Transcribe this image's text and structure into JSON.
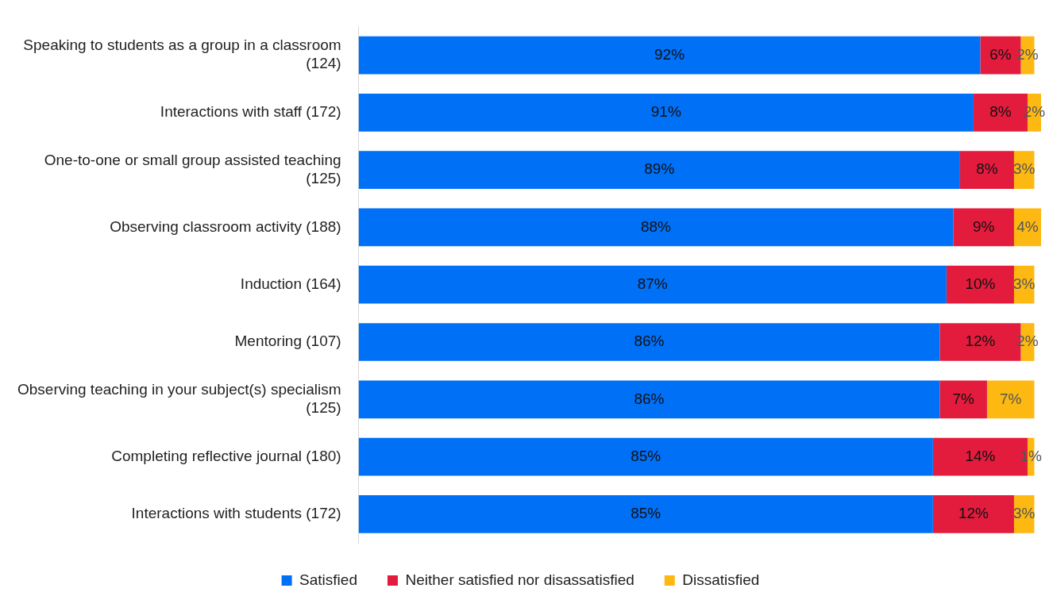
{
  "chart_data": {
    "type": "bar",
    "orientation": "horizontal",
    "stacked": true,
    "legend": "bottom",
    "grid": false,
    "tick_labels": "y",
    "xlim": [
      0,
      101
    ],
    "categories": [
      "Speaking to students as a group in a classroom\n(124)",
      "Interactions with staff (172)",
      "One-to-one or small group assisted teaching\n(125)",
      "Observing classroom activity (188)",
      "Induction (164)",
      "Mentoring (107)",
      "Observing teaching in your subject(s) specialism\n(125)",
      "Completing reflective journal (180)",
      "Interactions with students (172)"
    ],
    "series": [
      {
        "name": "Satisfied",
        "color": "#0070f6",
        "values": [
          92,
          91,
          89,
          88,
          87,
          86,
          86,
          85,
          85
        ],
        "value_labels": [
          "92%",
          "91%",
          "89%",
          "88%",
          "87%",
          "86%",
          "86%",
          "85%",
          "85%"
        ]
      },
      {
        "name": "Neither satisfied nor disassatisfied",
        "color": "#e31c3d",
        "values": [
          6,
          8,
          8,
          9,
          10,
          12,
          7,
          14,
          12
        ],
        "value_labels": [
          "6%",
          "8%",
          "8%",
          "9%",
          "10%",
          "12%",
          "7%",
          "14%",
          "12%"
        ]
      },
      {
        "name": "Dissatisfied",
        "color": "#fdb912",
        "values": [
          2,
          2,
          3,
          4,
          3,
          2,
          7,
          1,
          3
        ],
        "value_labels": [
          "2%",
          "2%",
          "3%",
          "4%",
          "3%",
          "2%",
          "7%",
          "1%",
          "3%"
        ]
      }
    ]
  }
}
